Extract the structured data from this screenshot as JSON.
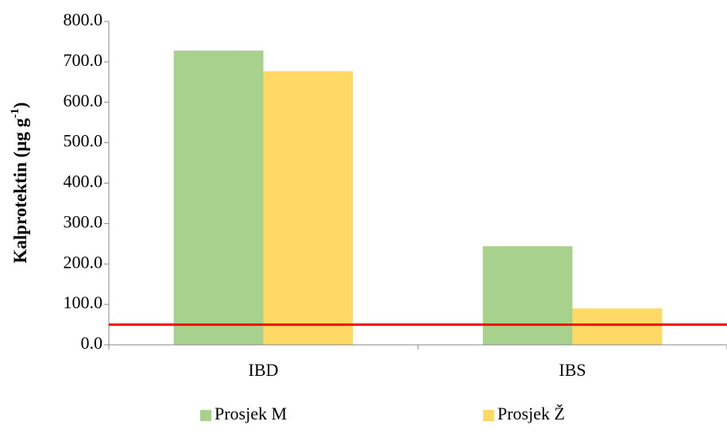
{
  "chart_data": {
    "type": "bar",
    "categories": [
      "IBD",
      "IBS"
    ],
    "series": [
      {
        "name": "Prosjek M",
        "color": "#a9d18e",
        "values": [
          728,
          244
        ]
      },
      {
        "name": "Prosjek Ž",
        "color": "#ffd966",
        "values": [
          677,
          90
        ]
      }
    ],
    "ylabel": {
      "text": "Kalprotektin (µg g",
      "superscript": "-1",
      "suffix": ")"
    },
    "ylim": [
      0,
      800
    ],
    "yticks": [
      {
        "value": 0,
        "label": "0.0"
      },
      {
        "value": 100,
        "label": "100.0"
      },
      {
        "value": 200,
        "label": "200.0"
      },
      {
        "value": 300,
        "label": "300.0"
      },
      {
        "value": 400,
        "label": "400.0"
      },
      {
        "value": 500,
        "label": "500.0"
      },
      {
        "value": 600,
        "label": "600.0"
      },
      {
        "value": 700,
        "label": "700.0"
      },
      {
        "value": 800,
        "label": "800.0"
      }
    ],
    "reference_line": {
      "value": 50,
      "color": "#ff0000"
    },
    "legend": "bottom"
  }
}
